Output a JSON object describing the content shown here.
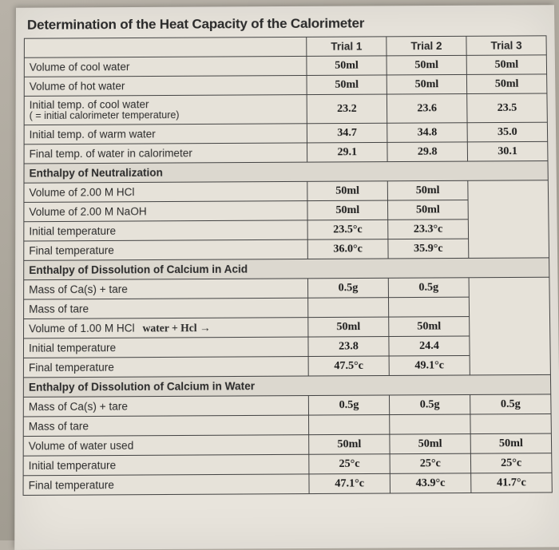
{
  "title": "Determination of the Heat Capacity of the Calorimeter",
  "headers": {
    "t1": "Trial 1",
    "t2": "Trial 2",
    "t3": "Trial 3"
  },
  "section1": {
    "rows": [
      {
        "label": "Volume of cool water",
        "t1": "50ml",
        "t2": "50ml",
        "t3": "50ml"
      },
      {
        "label": "Volume of hot water",
        "t1": "50ml",
        "t2": "50ml",
        "t3": "50ml"
      },
      {
        "label": "Initial temp. of cool water",
        "sub": "( = initial calorimeter temperature)",
        "t1": "23.2",
        "t2": "23.6",
        "t3": "23.5"
      },
      {
        "label": "Initial temp. of warm water",
        "t1": "34.7",
        "t2": "34.8",
        "t3": "35.0"
      },
      {
        "label": "Final temp. of water in calorimeter",
        "t1": "29.1",
        "t2": "29.8",
        "t3": "30.1"
      }
    ]
  },
  "section2": {
    "head": "Enthalpy of Neutralization",
    "rows": [
      {
        "label": "Volume of 2.00 M HCl",
        "t1": "50ml",
        "t2": "50ml",
        "t3": ""
      },
      {
        "label": "Volume of 2.00 M NaOH",
        "t1": "50ml",
        "t2": "50ml",
        "t3": ""
      },
      {
        "label": "Initial temperature",
        "t1": "23.5°c",
        "t2": "23.3°c",
        "t3": ""
      },
      {
        "label": "Final temperature",
        "t1": "36.0°c",
        "t2": "35.9°c",
        "t3": ""
      }
    ]
  },
  "section3": {
    "head": "Enthalpy of Dissolution of Calcium in Acid",
    "rows": [
      {
        "label": "Mass of Ca(s) + tare",
        "t1": "0.5g",
        "t2": "0.5g",
        "t3": ""
      },
      {
        "label": "Mass of tare",
        "t1": "",
        "t2": "",
        "t3": ""
      },
      {
        "label": "Volume of 1.00 M HCl",
        "note": "water + Hcl →",
        "t1": "50ml",
        "t2": "50ml",
        "t3": ""
      },
      {
        "label": "Initial temperature",
        "t1": "23.8",
        "t2": "24.4",
        "t3": ""
      },
      {
        "label": "Final temperature",
        "t1": "47.5°c",
        "t2": "49.1°c",
        "t3": ""
      }
    ]
  },
  "section4": {
    "head": "Enthalpy of Dissolution of Calcium in Water",
    "rows": [
      {
        "label": "Mass of Ca(s) + tare",
        "t1": "0.5g",
        "t2": "0.5g",
        "t3": "0.5g"
      },
      {
        "label": "Mass of tare",
        "t1": "",
        "t2": "",
        "t3": ""
      },
      {
        "label": "Volume of water used",
        "t1": "50ml",
        "t2": "50ml",
        "t3": "50ml"
      },
      {
        "label": "Initial temperature",
        "t1": "25°c",
        "t2": "25°c",
        "t3": "25°c"
      },
      {
        "label": "Final temperature",
        "t1": "47.1°c",
        "t2": "43.9°c",
        "t3": "41.7°c"
      }
    ]
  },
  "colors": {
    "page_bg": "#e8e4dc",
    "cell_bg": "#e6e2d9",
    "section_bg": "#dcd8cf",
    "border": "#444444",
    "text": "#2a2a2a",
    "handwriting": "#1a1a1a"
  }
}
